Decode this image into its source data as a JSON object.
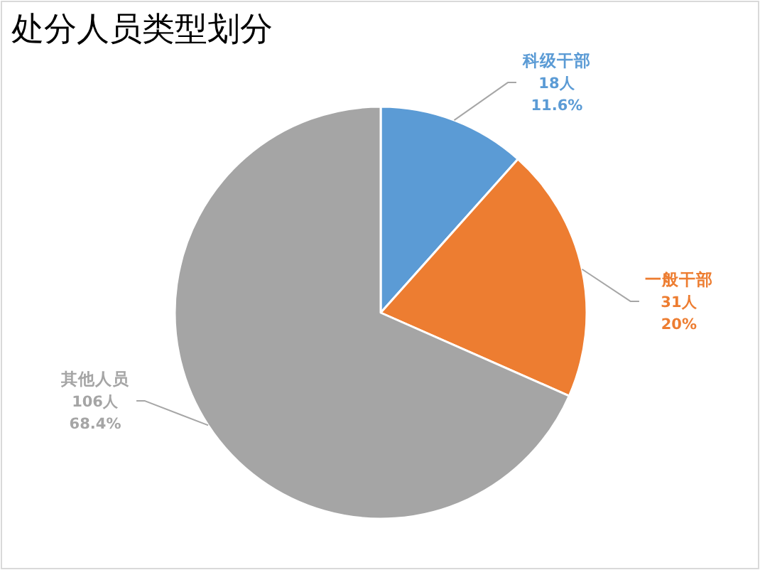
{
  "chart_data": {
    "type": "pie",
    "title": "处分人员类型划分",
    "categories": [
      "科级干部",
      "一般干部",
      "其他人员"
    ],
    "values": [
      18,
      31,
      106
    ],
    "colors": [
      "#5b9bd5",
      "#ed7d31",
      "#a5a5a5"
    ],
    "value_labels": [
      "18人\n11.6%",
      "31人\n20%",
      "106人\n68.4%"
    ]
  }
}
